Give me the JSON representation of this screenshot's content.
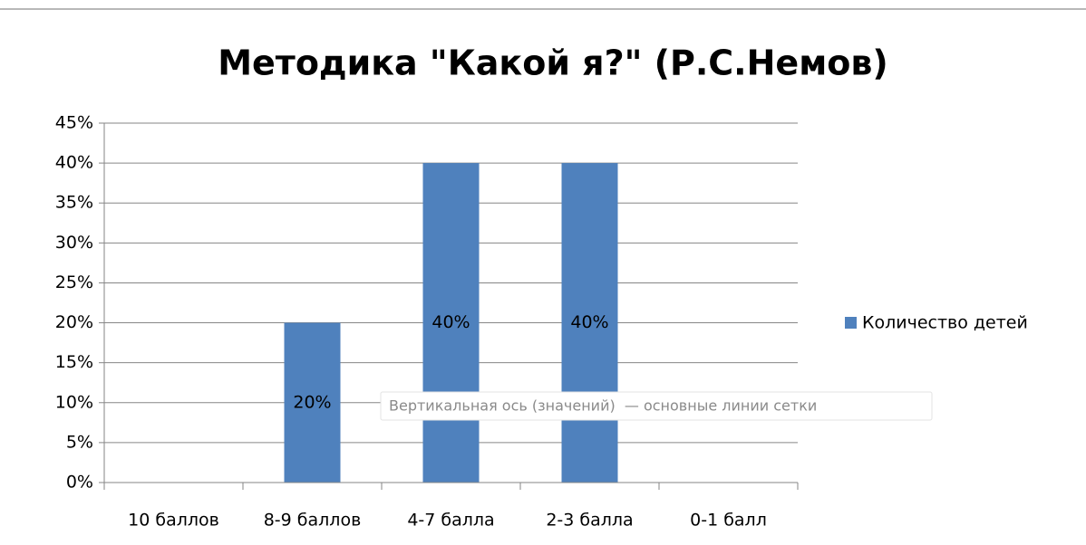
{
  "chart_data": {
    "type": "bar",
    "title": "Методика \"Какой я?\" (Р.С.Немов)",
    "categories": [
      "10 баллов",
      "8-9 баллов",
      "4-7 балла",
      "2-3 балла",
      "0-1 балл"
    ],
    "series": [
      {
        "name": "Количество детей",
        "color": "#4f81bd",
        "values": [
          0,
          20,
          40,
          40,
          0
        ],
        "value_labels": [
          null,
          "20%",
          "40%",
          "40%",
          null
        ]
      }
    ],
    "ylim": [
      0,
      45
    ],
    "yticks": [
      {
        "value": 0,
        "label": "0%"
      },
      {
        "value": 5,
        "label": "5%"
      },
      {
        "value": 10,
        "label": "10%"
      },
      {
        "value": 15,
        "label": "15%"
      },
      {
        "value": 20,
        "label": "20%"
      },
      {
        "value": 25,
        "label": "25%"
      },
      {
        "value": 30,
        "label": "30%"
      },
      {
        "value": 35,
        "label": "35%"
      },
      {
        "value": 40,
        "label": "40%"
      },
      {
        "value": 45,
        "label": "45%"
      }
    ],
    "grid": true,
    "legend": "right",
    "tooltip": "Вертикальная ось (значений)  — основные линии сетки"
  }
}
